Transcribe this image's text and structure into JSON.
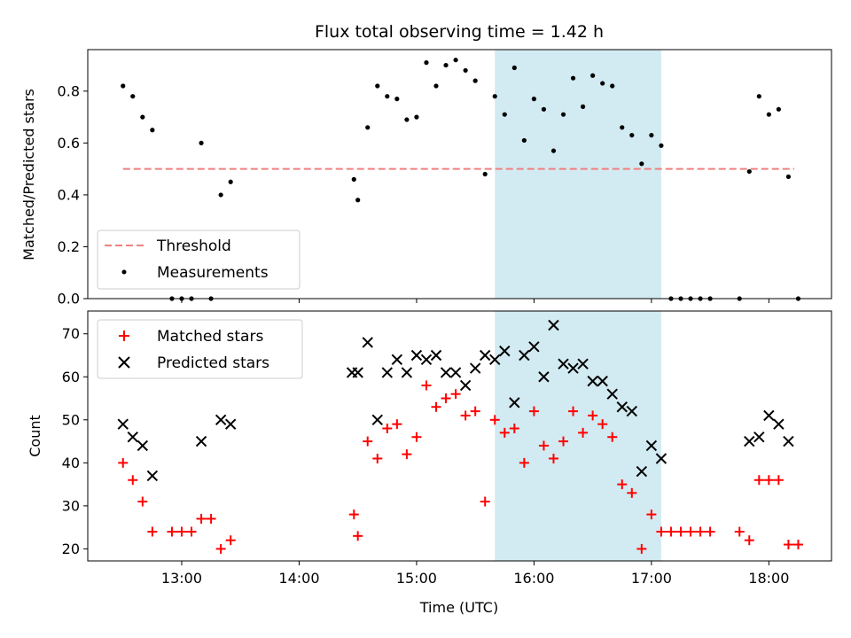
{
  "chart_data": [
    {
      "type": "scatter",
      "title": "Flux total observing time = 1.42 h",
      "xlabel": "",
      "ylabel": "Matched/Predicted stars",
      "ylim": [
        0,
        0.96
      ],
      "yticks": [
        "0.0",
        "0.2",
        "0.4",
        "0.6",
        "0.8"
      ],
      "yticks_values": [
        0,
        0.2,
        0.4,
        0.6,
        0.8
      ],
      "xlim": [
        "12:12",
        "18:32"
      ],
      "highlight_span": {
        "start": "15:40",
        "end": "17:05",
        "color": "#add8e6"
      },
      "threshold": {
        "name": "Threshold",
        "y": 0.5,
        "start": "12:30",
        "end": "18:13",
        "color": "#f08080"
      },
      "legend_position": "lower-left",
      "series": [
        {
          "name": "Measurements",
          "color": "#000000",
          "x": [
            "12:30",
            "12:35",
            "12:40",
            "12:45",
            "12:55",
            "13:00",
            "13:05",
            "13:10",
            "13:15",
            "13:20",
            "13:25",
            "14:28",
            "14:30",
            "14:35",
            "14:40",
            "14:45",
            "14:50",
            "14:55",
            "15:00",
            "15:05",
            "15:10",
            "15:15",
            "15:20",
            "15:25",
            "15:30",
            "15:35",
            "15:40",
            "15:45",
            "15:50",
            "15:55",
            "16:00",
            "16:05",
            "16:10",
            "16:15",
            "16:20",
            "16:25",
            "16:30",
            "16:35",
            "16:40",
            "16:45",
            "16:50",
            "16:55",
            "17:00",
            "17:05",
            "17:10",
            "17:15",
            "17:20",
            "17:25",
            "17:30",
            "17:45",
            "17:50",
            "17:55",
            "18:00",
            "18:05",
            "18:10",
            "18:15"
          ],
          "values": [
            0.82,
            0.78,
            0.7,
            0.65,
            0.0,
            0.0,
            0.0,
            0.6,
            0.0,
            0.4,
            0.45,
            0.46,
            0.38,
            0.66,
            0.82,
            0.78,
            0.77,
            0.69,
            0.7,
            0.91,
            0.82,
            0.9,
            0.92,
            0.88,
            0.84,
            0.48,
            0.78,
            0.71,
            0.89,
            0.61,
            0.77,
            0.73,
            0.57,
            0.71,
            0.85,
            0.74,
            0.86,
            0.83,
            0.82,
            0.66,
            0.63,
            0.52,
            0.63,
            0.59,
            0.0,
            0.0,
            0.0,
            0.0,
            0.0,
            0.0,
            0.49,
            0.78,
            0.71,
            0.73,
            0.47,
            0.0
          ]
        }
      ]
    },
    {
      "type": "scatter",
      "title": "",
      "xlabel": "Time (UTC)",
      "ylabel": "Count",
      "ylim": [
        17.2,
        75.3
      ],
      "yticks": [
        "20",
        "30",
        "40",
        "50",
        "60",
        "70"
      ],
      "yticks_values": [
        20,
        30,
        40,
        50,
        60,
        70
      ],
      "xticks": [
        "13:00",
        "14:00",
        "15:00",
        "16:00",
        "17:00",
        "18:00"
      ],
      "xlim": [
        "12:12",
        "18:32"
      ],
      "highlight_span": {
        "start": "15:40",
        "end": "17:05",
        "color": "#add8e6"
      },
      "legend_position": "upper-left",
      "series": [
        {
          "name": "Matched stars",
          "color": "#ff0000",
          "marker": "+",
          "x": [
            "12:30",
            "12:35",
            "12:40",
            "12:45",
            "12:55",
            "13:00",
            "13:05",
            "13:10",
            "13:15",
            "13:20",
            "13:25",
            "14:28",
            "14:30",
            "14:35",
            "14:40",
            "14:45",
            "14:50",
            "14:55",
            "15:00",
            "15:05",
            "15:10",
            "15:15",
            "15:20",
            "15:25",
            "15:30",
            "15:35",
            "15:40",
            "15:45",
            "15:50",
            "15:55",
            "16:00",
            "16:05",
            "16:10",
            "16:15",
            "16:20",
            "16:25",
            "16:30",
            "16:35",
            "16:40",
            "16:45",
            "16:50",
            "16:55",
            "17:00",
            "17:05",
            "17:10",
            "17:15",
            "17:20",
            "17:25",
            "17:30",
            "17:45",
            "17:50",
            "17:55",
            "18:00",
            "18:05",
            "18:10",
            "18:15"
          ],
          "values": [
            40,
            36,
            31,
            24,
            24,
            24,
            24,
            27,
            27,
            20,
            22,
            28,
            23,
            45,
            41,
            48,
            49,
            42,
            46,
            58,
            53,
            55,
            56,
            51,
            52,
            31,
            50,
            47,
            48,
            40,
            52,
            44,
            41,
            45,
            52,
            47,
            51,
            49,
            46,
            35,
            33,
            20,
            28,
            24,
            24,
            24,
            24,
            24,
            24,
            24,
            22,
            36,
            36,
            36,
            21,
            21
          ]
        },
        {
          "name": "Predicted stars",
          "color": "#000000",
          "marker": "x",
          "x": [
            "12:30",
            "12:35",
            "12:40",
            "12:45",
            "13:10",
            "13:20",
            "13:25",
            "14:27",
            "14:30",
            "14:35",
            "14:40",
            "14:45",
            "14:50",
            "14:55",
            "15:00",
            "15:05",
            "15:10",
            "15:15",
            "15:20",
            "15:25",
            "15:30",
            "15:35",
            "15:40",
            "15:45",
            "15:50",
            "15:55",
            "16:00",
            "16:05",
            "16:10",
            "16:15",
            "16:20",
            "16:25",
            "16:30",
            "16:35",
            "16:40",
            "16:45",
            "16:50",
            "16:55",
            "17:00",
            "17:05",
            "17:50",
            "17:55",
            "18:00",
            "18:05",
            "18:10"
          ],
          "values": [
            49,
            46,
            44,
            37,
            45,
            50,
            49,
            61,
            61,
            68,
            50,
            61,
            64,
            61,
            65,
            64,
            65,
            61,
            61,
            58,
            62,
            65,
            64,
            66,
            54,
            65,
            67,
            60,
            72,
            63,
            62,
            63,
            59,
            59,
            56,
            53,
            52,
            38,
            44,
            41,
            45,
            46,
            51,
            49,
            45
          ]
        }
      ]
    }
  ]
}
